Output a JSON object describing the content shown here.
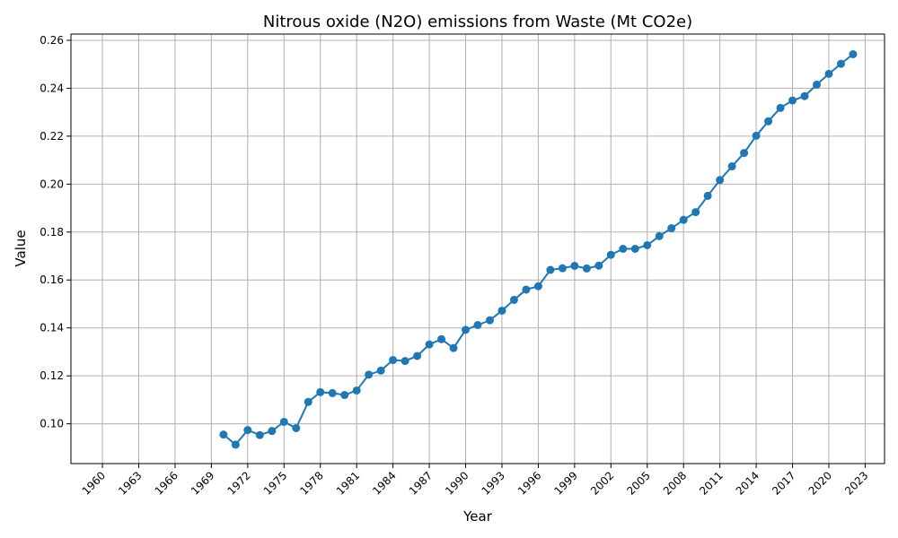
{
  "chart_data": {
    "type": "line",
    "title": "Nitrous oxide (N2O) emissions from Waste (Mt CO2e)",
    "xlabel": "Year",
    "ylabel": "Value",
    "xlim": [
      1957.4,
      2024.6
    ],
    "ylim": [
      0.0834,
      0.2626
    ],
    "xticks": [
      1960,
      1963,
      1966,
      1969,
      1972,
      1975,
      1978,
      1981,
      1984,
      1987,
      1990,
      1993,
      1996,
      1999,
      2002,
      2005,
      2008,
      2011,
      2014,
      2017,
      2020,
      2023
    ],
    "yticks": [
      0.1,
      0.12,
      0.14,
      0.16,
      0.18,
      0.2,
      0.22,
      0.24,
      0.26
    ],
    "ytick_labels": [
      "0.10",
      "0.12",
      "0.14",
      "0.16",
      "0.18",
      "0.20",
      "0.22",
      "0.24",
      "0.26"
    ],
    "grid": true,
    "marker": "circle",
    "color": "#1f77b4",
    "series": [
      {
        "x": [
          1970,
          1971,
          1972,
          1973,
          1974,
          1975,
          1976,
          1977,
          1978,
          1979,
          1980,
          1981,
          1982,
          1983,
          1984,
          1985,
          1986,
          1987,
          1988,
          1989,
          1990,
          1991,
          1992,
          1993,
          1994,
          1995,
          1996,
          1997,
          1998,
          1999,
          2000,
          2001,
          2002,
          2003,
          2004,
          2005,
          2006,
          2007,
          2008,
          2009,
          2010,
          2011,
          2012,
          2013,
          2014,
          2015,
          2016,
          2017,
          2018,
          2019,
          2020,
          2021,
          2022
        ],
        "values": [
          0.0955,
          0.0913,
          0.0974,
          0.0953,
          0.097,
          0.1008,
          0.0982,
          0.1091,
          0.1132,
          0.1128,
          0.112,
          0.1139,
          0.1205,
          0.1222,
          0.1266,
          0.1262,
          0.1283,
          0.1331,
          0.1353,
          0.1316,
          0.1392,
          0.1412,
          0.1432,
          0.1472,
          0.1517,
          0.156,
          0.1574,
          0.1642,
          0.1649,
          0.1659,
          0.1648,
          0.166,
          0.1705,
          0.173,
          0.173,
          0.1745,
          0.1783,
          0.1816,
          0.1851,
          0.1883,
          0.1951,
          0.2017,
          0.2074,
          0.213,
          0.2202,
          0.2262,
          0.2318,
          0.2349,
          0.2367,
          0.2415,
          0.246,
          0.2502,
          0.2542
        ]
      }
    ]
  }
}
